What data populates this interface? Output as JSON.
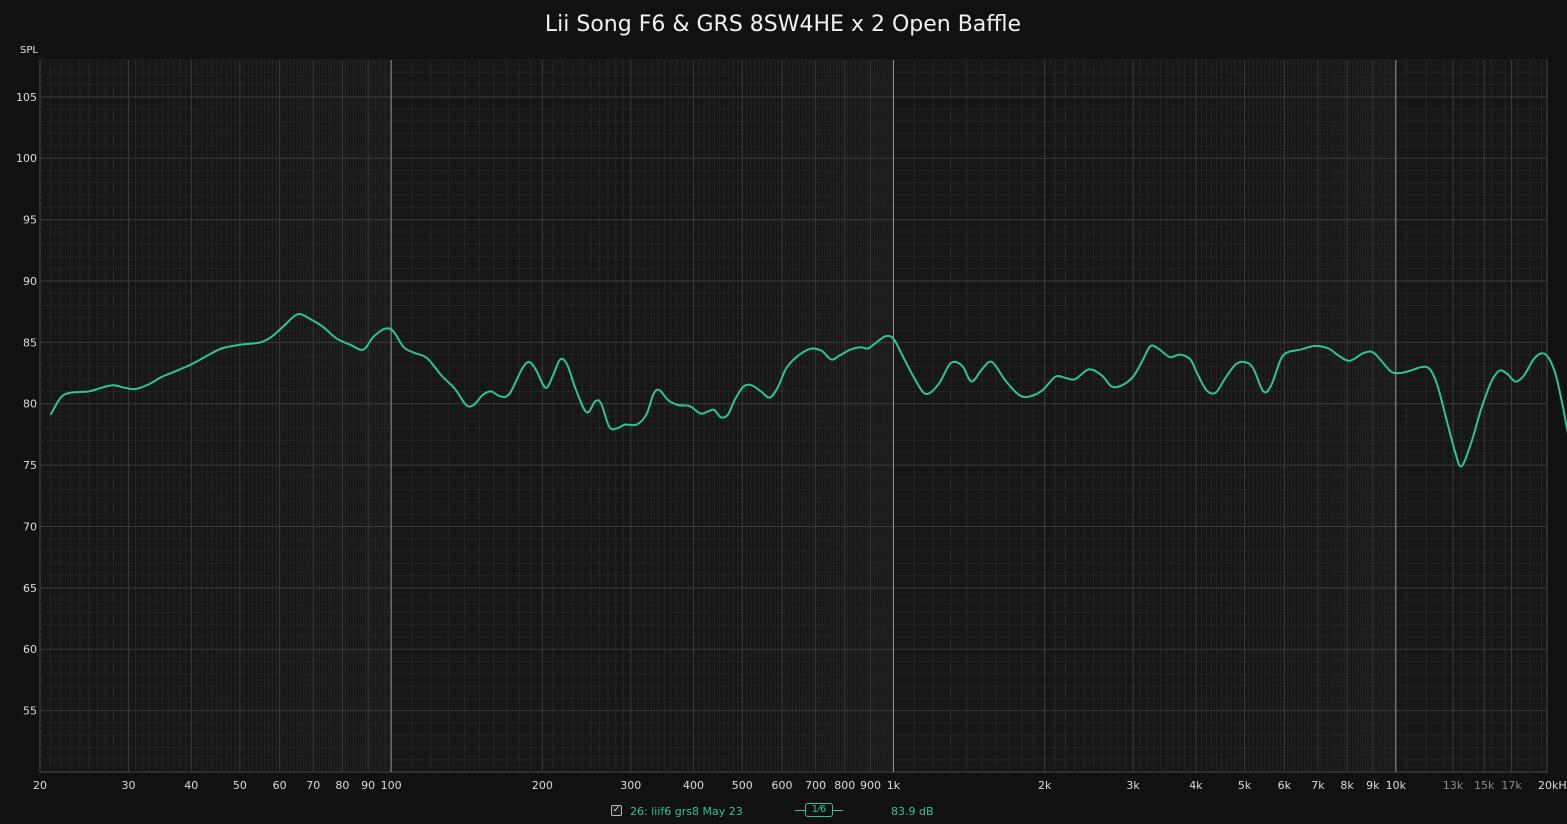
{
  "chart_data": {
    "type": "line",
    "title": "Lii Song F6 & GRS 8SW4HE x 2 Open Baffle",
    "ylabel": "SPL",
    "xscale": "log",
    "xlim": [
      20,
      20000
    ],
    "ylim": [
      50,
      108
    ],
    "grid": true,
    "y_ticks": [
      55,
      60,
      65,
      70,
      75,
      80,
      85,
      90,
      95,
      100,
      105
    ],
    "x_ticks": [
      {
        "v": 20,
        "label": "20"
      },
      {
        "v": 30,
        "label": "30"
      },
      {
        "v": 40,
        "label": "40"
      },
      {
        "v": 50,
        "label": "50"
      },
      {
        "v": 60,
        "label": "60"
      },
      {
        "v": 70,
        "label": "70"
      },
      {
        "v": 80,
        "label": "80"
      },
      {
        "v": 90,
        "label": "90"
      },
      {
        "v": 100,
        "label": "100"
      },
      {
        "v": 200,
        "label": "200"
      },
      {
        "v": 300,
        "label": "300"
      },
      {
        "v": 400,
        "label": "400"
      },
      {
        "v": 500,
        "label": "500"
      },
      {
        "v": 600,
        "label": "600"
      },
      {
        "v": 700,
        "label": "700"
      },
      {
        "v": 800,
        "label": "800"
      },
      {
        "v": 900,
        "label": "900"
      },
      {
        "v": 1000,
        "label": "1k"
      },
      {
        "v": 2000,
        "label": "2k"
      },
      {
        "v": 3000,
        "label": "3k"
      },
      {
        "v": 4000,
        "label": "4k"
      },
      {
        "v": 5000,
        "label": "5k"
      },
      {
        "v": 6000,
        "label": "6k"
      },
      {
        "v": 7000,
        "label": "7k"
      },
      {
        "v": 8000,
        "label": "8k"
      },
      {
        "v": 9000,
        "label": "9k"
      },
      {
        "v": 10000,
        "label": "10k"
      },
      {
        "v": 13000,
        "label": "13k"
      },
      {
        "v": 15000,
        "label": "15k"
      },
      {
        "v": 17000,
        "label": "17k"
      },
      {
        "v": 20000,
        "label": "20kHz"
      }
    ],
    "series": [
      {
        "name": "26: liif6 grs8 May 23",
        "color": "#2fc58f",
        "points": [
          [
            21,
            79.1
          ],
          [
            22,
            80.5
          ],
          [
            23,
            80.9
          ],
          [
            25,
            81.0
          ],
          [
            26.5,
            81.3
          ],
          [
            28,
            81.5
          ],
          [
            29.5,
            81.3
          ],
          [
            31,
            81.2
          ],
          [
            33,
            81.6
          ],
          [
            35,
            82.2
          ],
          [
            37,
            82.6
          ],
          [
            40,
            83.2
          ],
          [
            43,
            83.9
          ],
          [
            46,
            84.5
          ],
          [
            50,
            84.8
          ],
          [
            55,
            85.0
          ],
          [
            58,
            85.5
          ],
          [
            61,
            86.3
          ],
          [
            64,
            87.1
          ],
          [
            66,
            87.3
          ],
          [
            69,
            86.9
          ],
          [
            73,
            86.3
          ],
          [
            78,
            85.3
          ],
          [
            83,
            84.8
          ],
          [
            88,
            84.4
          ],
          [
            92,
            85.4
          ],
          [
            97,
            86.1
          ],
          [
            101,
            85.9
          ],
          [
            106,
            84.6
          ],
          [
            112,
            84.1
          ],
          [
            118,
            83.7
          ],
          [
            126,
            82.3
          ],
          [
            134,
            81.2
          ],
          [
            141,
            79.9
          ],
          [
            146,
            79.9
          ],
          [
            152,
            80.7
          ],
          [
            158,
            81.0
          ],
          [
            165,
            80.6
          ],
          [
            172,
            80.8
          ],
          [
            182,
            82.8
          ],
          [
            188,
            83.4
          ],
          [
            194,
            82.8
          ],
          [
            203,
            81.3
          ],
          [
            210,
            82.3
          ],
          [
            217,
            83.6
          ],
          [
            224,
            83.2
          ],
          [
            233,
            81.2
          ],
          [
            245,
            79.3
          ],
          [
            255,
            80.2
          ],
          [
            262,
            80.0
          ],
          [
            272,
            78.1
          ],
          [
            282,
            78.0
          ],
          [
            292,
            78.3
          ],
          [
            308,
            78.3
          ],
          [
            322,
            79.1
          ],
          [
            333,
            80.8
          ],
          [
            342,
            81.1
          ],
          [
            356,
            80.3
          ],
          [
            372,
            79.9
          ],
          [
            393,
            79.8
          ],
          [
            413,
            79.2
          ],
          [
            429,
            79.4
          ],
          [
            440,
            79.5
          ],
          [
            453,
            78.9
          ],
          [
            468,
            79.1
          ],
          [
            483,
            80.3
          ],
          [
            503,
            81.4
          ],
          [
            522,
            81.5
          ],
          [
            545,
            81.0
          ],
          [
            567,
            80.5
          ],
          [
            588,
            81.3
          ],
          [
            610,
            82.8
          ],
          [
            633,
            83.6
          ],
          [
            661,
            84.2
          ],
          [
            688,
            84.5
          ],
          [
            720,
            84.3
          ],
          [
            752,
            83.6
          ],
          [
            780,
            83.9
          ],
          [
            820,
            84.4
          ],
          [
            860,
            84.6
          ],
          [
            890,
            84.5
          ],
          [
            925,
            85.0
          ],
          [
            965,
            85.5
          ],
          [
            1000,
            85.3
          ],
          [
            1040,
            84.0
          ],
          [
            1100,
            82.1
          ],
          [
            1160,
            80.8
          ],
          [
            1230,
            81.6
          ],
          [
            1300,
            83.3
          ],
          [
            1370,
            83.1
          ],
          [
            1430,
            81.8
          ],
          [
            1500,
            82.8
          ],
          [
            1570,
            83.4
          ],
          [
            1670,
            81.9
          ],
          [
            1780,
            80.7
          ],
          [
            1870,
            80.6
          ],
          [
            1980,
            81.1
          ],
          [
            2100,
            82.2
          ],
          [
            2200,
            82.1
          ],
          [
            2300,
            82.0
          ],
          [
            2450,
            82.8
          ],
          [
            2600,
            82.3
          ],
          [
            2720,
            81.4
          ],
          [
            2850,
            81.5
          ],
          [
            3000,
            82.2
          ],
          [
            3130,
            83.5
          ],
          [
            3250,
            84.7
          ],
          [
            3390,
            84.4
          ],
          [
            3550,
            83.8
          ],
          [
            3720,
            84.0
          ],
          [
            3900,
            83.6
          ],
          [
            4020,
            82.5
          ],
          [
            4200,
            81.1
          ],
          [
            4380,
            80.9
          ],
          [
            4580,
            82.1
          ],
          [
            4800,
            83.2
          ],
          [
            5000,
            83.4
          ],
          [
            5200,
            82.9
          ],
          [
            5450,
            81.0
          ],
          [
            5650,
            81.5
          ],
          [
            5900,
            83.6
          ],
          [
            6100,
            84.2
          ],
          [
            6450,
            84.4
          ],
          [
            6900,
            84.7
          ],
          [
            7350,
            84.5
          ],
          [
            7700,
            83.9
          ],
          [
            8100,
            83.5
          ],
          [
            8600,
            84.1
          ],
          [
            9000,
            84.2
          ],
          [
            9400,
            83.4
          ],
          [
            9800,
            82.6
          ],
          [
            10200,
            82.5
          ],
          [
            10700,
            82.7
          ],
          [
            11300,
            83.0
          ],
          [
            11700,
            82.8
          ],
          [
            12100,
            81.5
          ],
          [
            12600,
            78.8
          ],
          [
            13100,
            76.2
          ],
          [
            13500,
            74.9
          ],
          [
            14100,
            76.7
          ],
          [
            14800,
            79.6
          ],
          [
            15500,
            81.8
          ],
          [
            16100,
            82.7
          ],
          [
            16700,
            82.4
          ],
          [
            17300,
            81.8
          ],
          [
            18000,
            82.3
          ],
          [
            18800,
            83.6
          ],
          [
            19500,
            84.1
          ],
          [
            20100,
            83.8
          ],
          [
            20800,
            82.4
          ],
          [
            21500,
            79.8
          ],
          [
            22200,
            76.9
          ],
          [
            22800,
            75.4
          ]
        ]
      }
    ],
    "legend": {
      "checkbox_mark": "✓",
      "series_label": "26: liif6 grs8 May 23",
      "smoothing_label": "1⁄6",
      "level_label": "83.9 dB"
    }
  }
}
